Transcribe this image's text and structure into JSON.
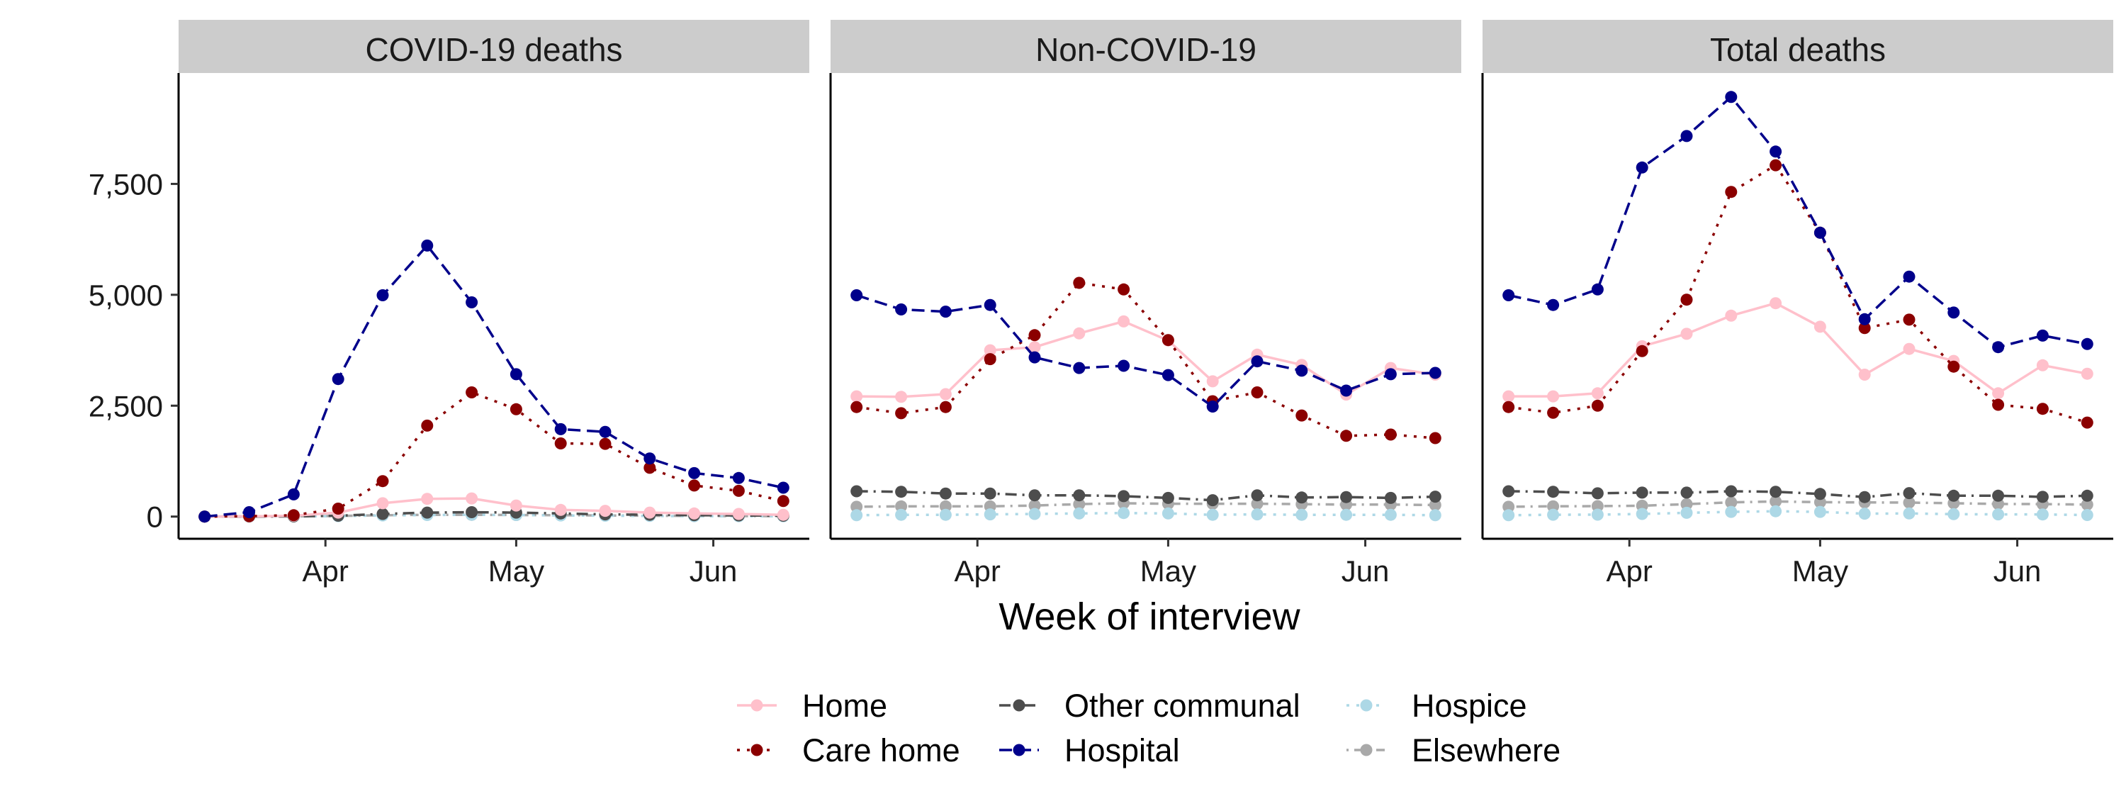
{
  "chart_data": {
    "type": "line",
    "facet_labels": [
      "COVID-19 deaths",
      "Non-COVID-19",
      "Total deaths"
    ],
    "xlabel": "Week of interview",
    "ylabel": "",
    "x": [
      "2020-03-13",
      "2020-03-20",
      "2020-03-27",
      "2020-04-03",
      "2020-04-10",
      "2020-04-17",
      "2020-04-24",
      "2020-05-01",
      "2020-05-08",
      "2020-05-15",
      "2020-05-22",
      "2020-05-29",
      "2020-06-05",
      "2020-06-12"
    ],
    "x_ticks": [
      {
        "date": "2020-04-01",
        "label": "Apr"
      },
      {
        "date": "2020-05-01",
        "label": "May"
      },
      {
        "date": "2020-06-01",
        "label": "Jun"
      }
    ],
    "ylim": [
      -500,
      10000
    ],
    "y_ticks": [
      {
        "value": 0,
        "label": "0"
      },
      {
        "value": 2500,
        "label": "2,500"
      },
      {
        "value": 5000,
        "label": "5,000"
      },
      {
        "value": 7500,
        "label": "7,500"
      }
    ],
    "grid": false,
    "legend_position": "bottom",
    "legend_columns": [
      [
        "Home",
        "Care home"
      ],
      [
        "Other communal",
        "Hospital"
      ],
      [
        "Hospice",
        "Elsewhere"
      ]
    ],
    "series_styles": [
      {
        "name": "Home",
        "color": "#ffc0cb",
        "dash": "none"
      },
      {
        "name": "Care home",
        "color": "#8b0000",
        "dash": "dotted"
      },
      {
        "name": "Other communal",
        "color": "#4d4d4d",
        "dash": "dashdot"
      },
      {
        "name": "Hospital",
        "color": "#00008b",
        "dash": "dashed"
      },
      {
        "name": "Hospice",
        "color": "#add8e6",
        "dash": "dotted"
      },
      {
        "name": "Elsewhere",
        "color": "#a9a9a9",
        "dash": "dotdash"
      }
    ],
    "panels": [
      {
        "title": "COVID-19 deaths",
        "series": [
          {
            "name": "Home",
            "values": [
              0,
              5,
              20,
              90,
              300,
              400,
              410,
              250,
              150,
              130,
              90,
              70,
              60,
              40
            ]
          },
          {
            "name": "Care home",
            "values": [
              0,
              10,
              30,
              180,
              800,
              2050,
              2800,
              2420,
              1650,
              1640,
              1100,
              700,
              580,
              350
            ]
          },
          {
            "name": "Other communal",
            "values": [
              0,
              2,
              5,
              20,
              60,
              90,
              100,
              90,
              70,
              50,
              40,
              30,
              25,
              20
            ]
          },
          {
            "name": "Hospital",
            "values": [
              0,
              100,
              500,
              3100,
              4990,
              6110,
              4830,
              3210,
              1970,
              1910,
              1310,
              980,
              870,
              650
            ]
          },
          {
            "name": "Hospice",
            "values": [
              0,
              1,
              3,
              10,
              25,
              35,
              40,
              35,
              25,
              20,
              15,
              10,
              8,
              6
            ]
          },
          {
            "name": "Elsewhere",
            "values": [
              0,
              2,
              5,
              15,
              30,
              40,
              40,
              35,
              30,
              25,
              20,
              15,
              12,
              10
            ]
          }
        ]
      },
      {
        "title": "Non-COVID-19",
        "series": [
          {
            "name": "Home",
            "values": [
              2710,
              2700,
              2760,
              3750,
              3820,
              4130,
              4400,
              3970,
              3050,
              3650,
              3420,
              2750,
              3350,
              3200
            ]
          },
          {
            "name": "Care home",
            "values": [
              2470,
              2330,
              2470,
              3550,
              4090,
              5270,
              5120,
              3980,
              2600,
              2800,
              2280,
              1820,
              1850,
              1770
            ]
          },
          {
            "name": "Other communal",
            "values": [
              570,
              560,
              520,
              520,
              480,
              480,
              460,
              420,
              370,
              480,
              430,
              440,
              420,
              450
            ]
          },
          {
            "name": "Hospital",
            "values": [
              4990,
              4670,
              4620,
              4770,
              3590,
              3350,
              3400,
              3190,
              2480,
              3500,
              3290,
              2840,
              3210,
              3240
            ]
          },
          {
            "name": "Hospice",
            "values": [
              30,
              40,
              40,
              50,
              60,
              70,
              80,
              70,
              40,
              50,
              40,
              40,
              40,
              30
            ]
          },
          {
            "name": "Elsewhere",
            "values": [
              220,
              230,
              230,
              230,
              250,
              280,
              300,
              290,
              290,
              290,
              280,
              270,
              270,
              260
            ]
          }
        ]
      },
      {
        "title": "Total deaths",
        "series": [
          {
            "name": "Home",
            "values": [
              2710,
              2710,
              2780,
              3840,
              4120,
              4530,
              4810,
              4280,
              3200,
              3780,
              3510,
              2780,
              3410,
              3220
            ]
          },
          {
            "name": "Care home",
            "values": [
              2470,
              2340,
              2500,
              3730,
              4890,
              7320,
              7920,
              6400,
              4250,
              4440,
              3380,
              2520,
              2430,
              2120
            ]
          },
          {
            "name": "Other communal",
            "values": [
              570,
              560,
              525,
              540,
              540,
              570,
              560,
              510,
              440,
              530,
              470,
              470,
              445,
              470
            ]
          },
          {
            "name": "Hospital",
            "values": [
              4990,
              4770,
              5120,
              7870,
              8580,
              9460,
              8230,
              6400,
              4450,
              5410,
              4600,
              3820,
              4080,
              3890
            ]
          },
          {
            "name": "Hospice",
            "values": [
              30,
              41,
              43,
              60,
              85,
              105,
              120,
              105,
              65,
              70,
              55,
              50,
              48,
              36
            ]
          },
          {
            "name": "Elsewhere",
            "values": [
              220,
              232,
              235,
              245,
              280,
              320,
              340,
              325,
              320,
              315,
              300,
              285,
              282,
              270
            ]
          }
        ]
      }
    ]
  }
}
